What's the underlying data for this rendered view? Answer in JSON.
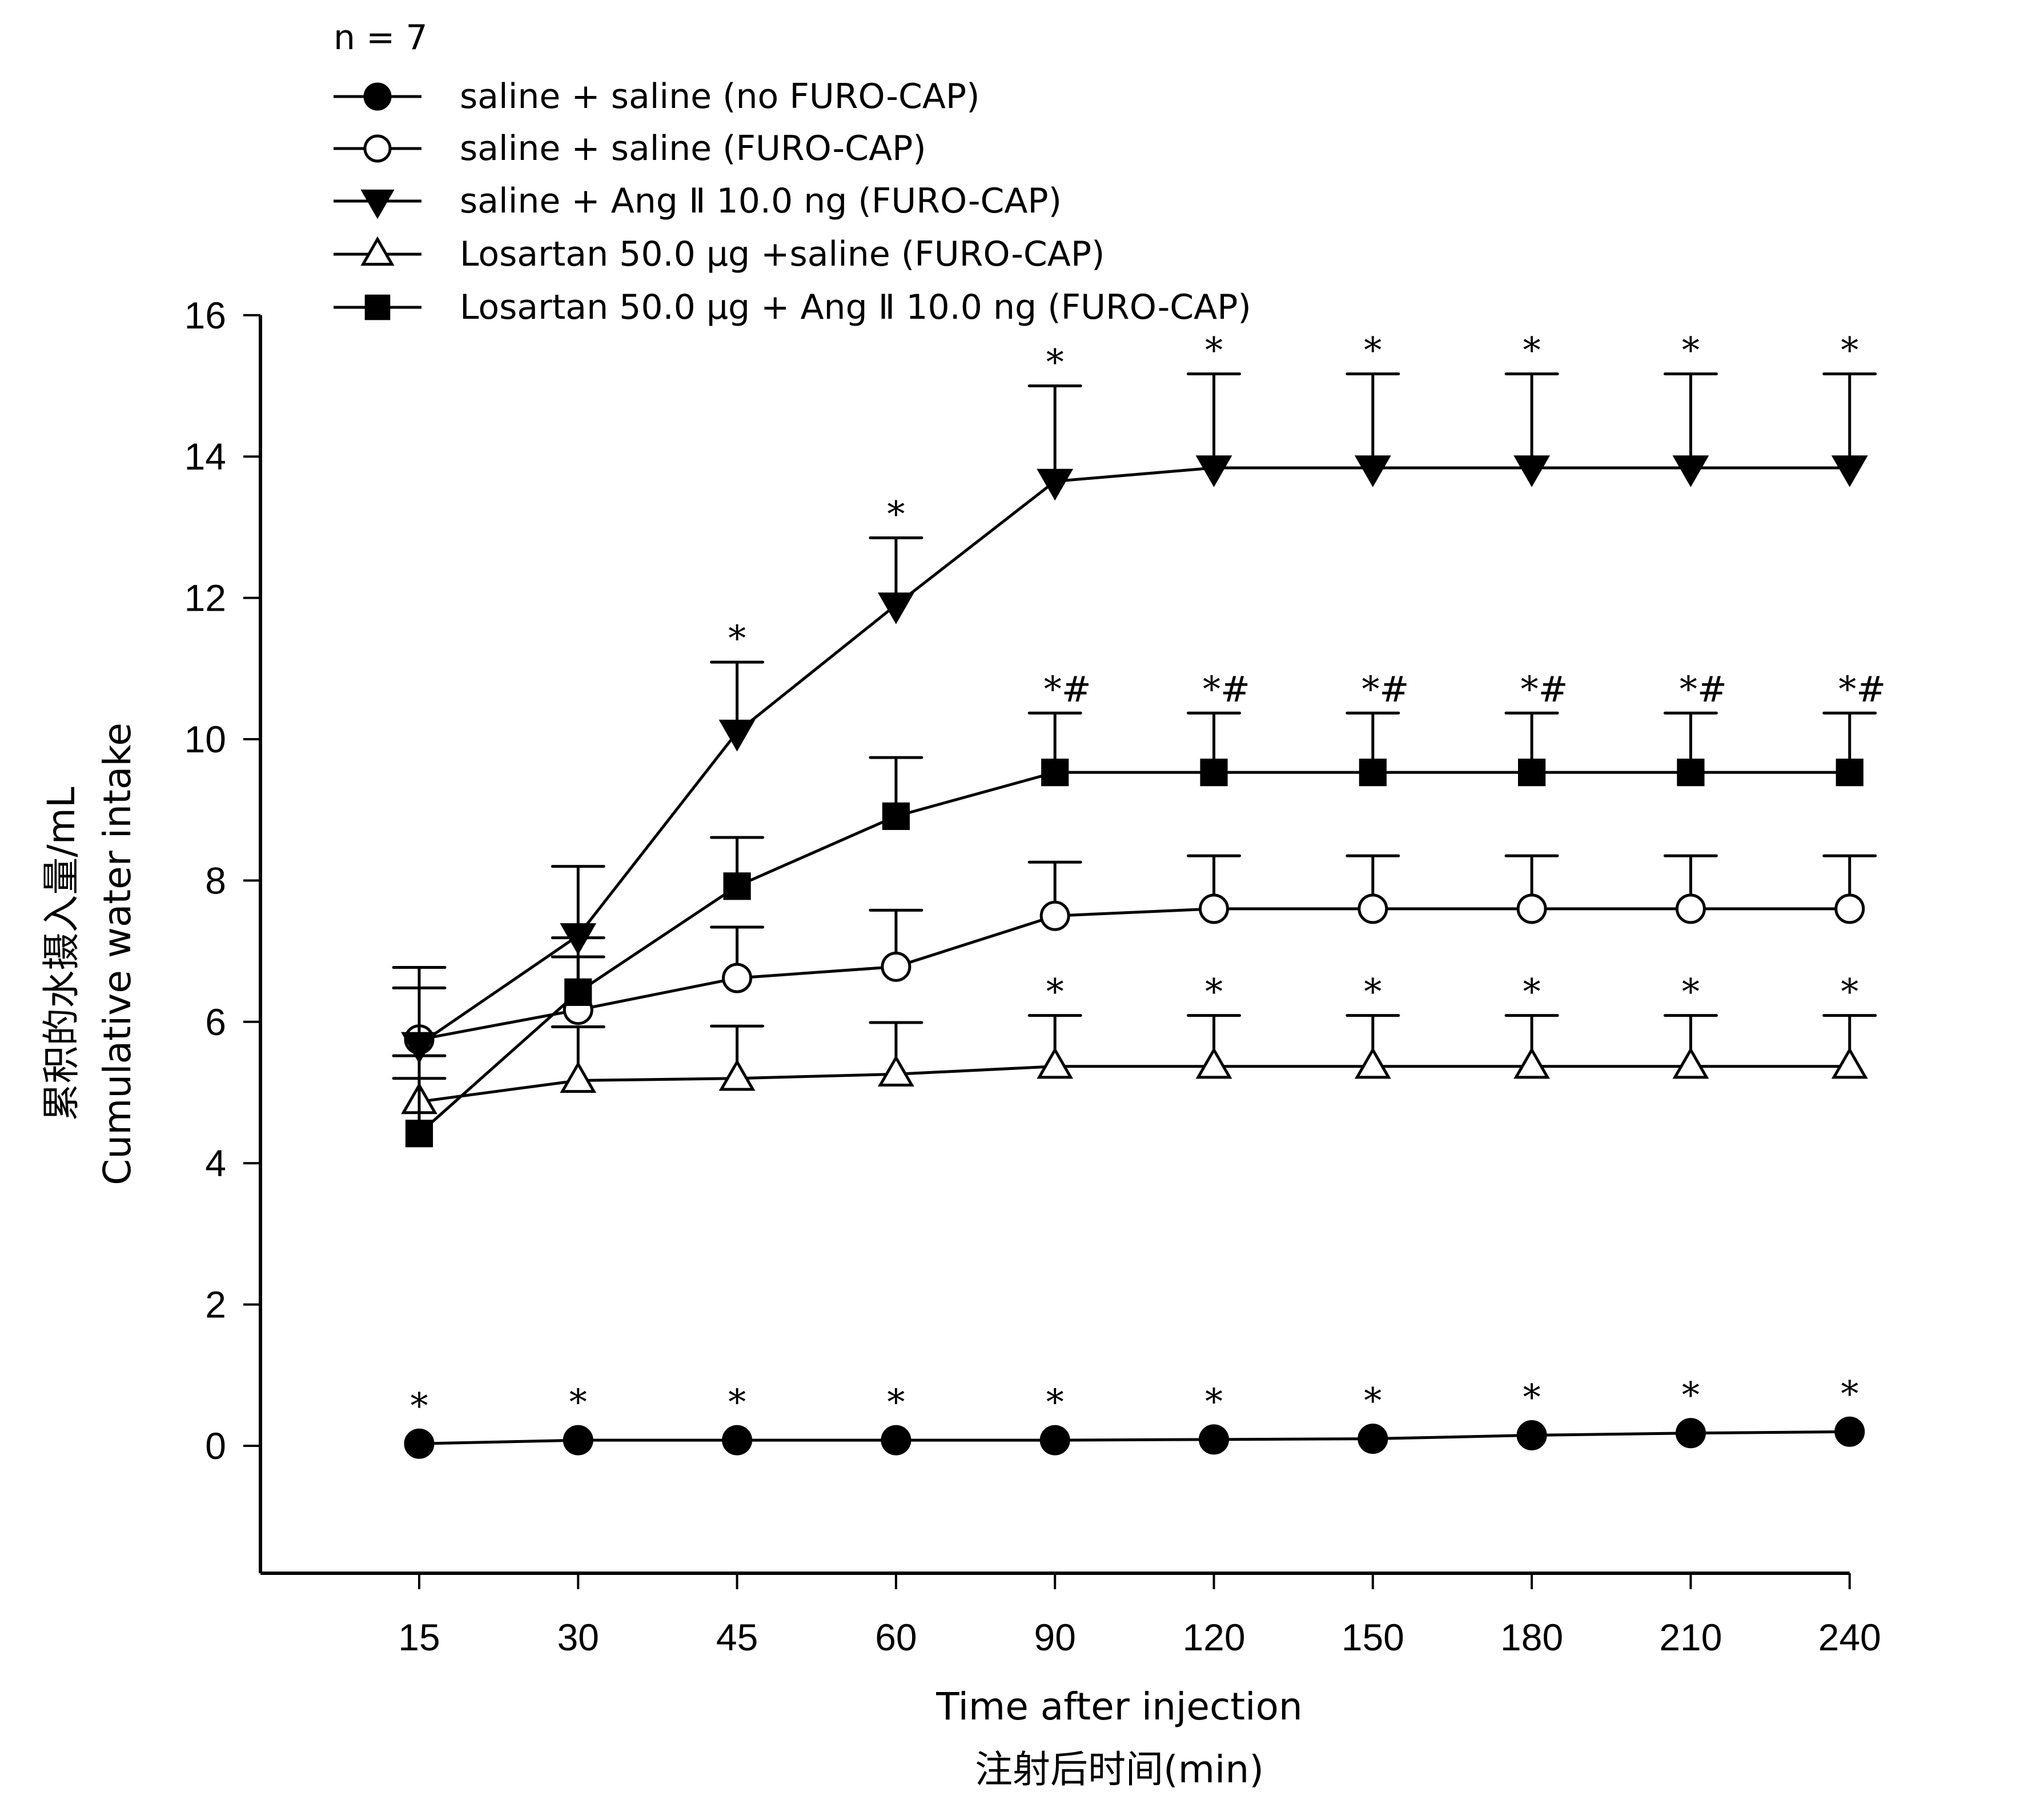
{
  "chart_data": {
    "type": "line",
    "note": "n = 7",
    "x": [
      "15",
      "30",
      "45",
      "60",
      "90",
      "120",
      "150",
      "180",
      "210",
      "240"
    ],
    "xlabel": "Time after injection",
    "xlabel2": "注射后时间(min)",
    "ylabel": "累积的水摄入量/mL",
    "ylabel2": "Cumulative water intake",
    "ylim": [
      -1.8,
      16
    ],
    "yticks": [
      "0",
      "2",
      "4",
      "6",
      "8",
      "10",
      "12",
      "14",
      "16"
    ],
    "grid": false,
    "legend_position": "top-left",
    "series": [
      {
        "name": "saline + saline (no FURO-CAP)",
        "marker": "filled-circle",
        "values": [
          0.03,
          0.08,
          0.08,
          0.08,
          0.08,
          0.09,
          0.1,
          0.15,
          0.18,
          0.2
        ],
        "error": [
          0,
          0,
          0,
          0,
          0,
          0,
          0,
          0,
          0,
          0
        ],
        "annotations": [
          "*",
          "*",
          "*",
          "*",
          "*",
          "*",
          "*",
          "*",
          "*",
          "*"
        ]
      },
      {
        "name": "saline + saline (FURO-CAP)",
        "marker": "open-circle",
        "values": [
          5.75,
          6.17,
          6.62,
          6.78,
          7.5,
          7.6,
          7.6,
          7.6,
          7.6,
          7.6
        ],
        "error": [
          0.73,
          0.75,
          0.72,
          0.8,
          0.76,
          0.75,
          0.75,
          0.75,
          0.75,
          0.75
        ],
        "annotations": [
          "",
          "",
          "",
          "",
          "",
          "",
          "",
          "",
          "",
          ""
        ]
      },
      {
        "name": "saline + Ang Ⅱ 10.0 ng (FURO-CAP)",
        "marker": "filled-triangle-down",
        "values": [
          5.68,
          7.22,
          10.1,
          11.9,
          13.65,
          13.84,
          13.84,
          13.84,
          13.84,
          13.84
        ],
        "error": [
          1.09,
          0.98,
          0.99,
          0.95,
          1.35,
          1.33,
          1.33,
          1.33,
          1.33,
          1.33
        ],
        "annotations": [
          "",
          "",
          "*",
          "*",
          "*",
          "*",
          "*",
          "*",
          "*",
          "*"
        ]
      },
      {
        "name": "Losartan 50.0 μg +saline (FURO-CAP)",
        "marker": "open-triangle-up",
        "values": [
          4.87,
          5.17,
          5.2,
          5.26,
          5.37,
          5.37,
          5.37,
          5.37,
          5.37,
          5.37
        ],
        "error": [
          0.33,
          0.76,
          0.74,
          0.73,
          0.72,
          0.72,
          0.72,
          0.72,
          0.72,
          0.72
        ],
        "annotations": [
          "",
          "",
          "",
          "",
          "*",
          "*",
          "*",
          "*",
          "*",
          "*"
        ]
      },
      {
        "name": "Losartan 50.0 μg + Ang Ⅱ 10.0 ng (FURO-CAP)",
        "marker": "filled-square",
        "values": [
          4.42,
          6.42,
          7.92,
          8.91,
          9.53,
          9.53,
          9.53,
          9.53,
          9.53,
          9.53
        ],
        "error": [
          1.1,
          0.77,
          0.69,
          0.83,
          0.84,
          0.84,
          0.84,
          0.84,
          0.84,
          0.84
        ],
        "annotations": [
          "",
          "",
          "",
          "",
          "*#",
          "*#",
          "*#",
          "*#",
          "*#",
          "*#"
        ]
      }
    ],
    "colors": {
      "ink": "#000000",
      "background": "#ffffff"
    }
  }
}
